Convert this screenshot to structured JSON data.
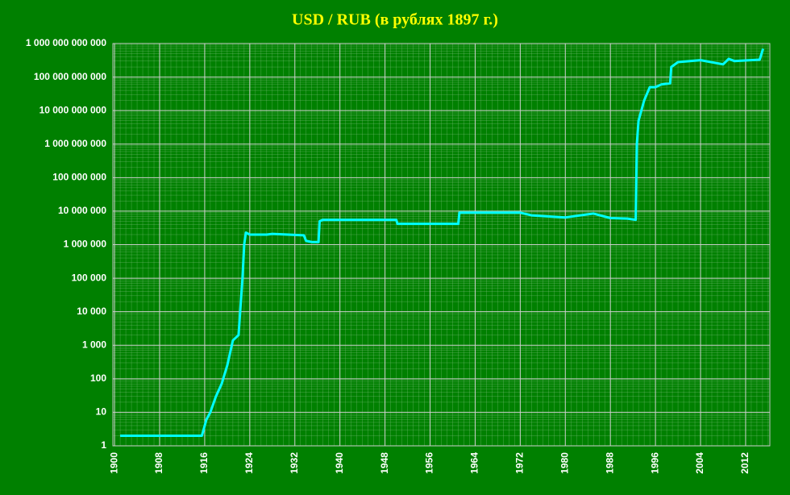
{
  "chart_data": {
    "type": "line",
    "title": "USD / RUB (в рублях 1897 г.)",
    "x": [
      1901,
      1915.5,
      1916.3,
      1917,
      1918,
      1919,
      1920,
      1921,
      1922,
      1922.7,
      1923,
      1923.3,
      1924,
      1927,
      1928,
      1933.6,
      1934,
      1935,
      1936.2,
      1936.4,
      1937,
      1950,
      1950.2,
      1961,
      1961.2,
      1972,
      1974,
      1980,
      1985,
      1988,
      1991,
      1992.5,
      1992.7,
      1993,
      1994,
      1995,
      1996,
      1997,
      1998.6,
      1998.8,
      2000,
      2004,
      2008,
      2009,
      2010,
      2014.5,
      2015.1
    ],
    "values": [
      2,
      2,
      6,
      10,
      30,
      70,
      250,
      1400,
      2000,
      100000,
      1000000,
      2300000,
      2000000,
      2000000,
      2100000,
      1900000,
      1300000,
      1200000,
      1200000,
      5000000,
      5500000,
      5500000,
      4200000,
      4200000,
      9000000,
      9000000,
      7500000,
      6500000,
      8500000,
      6200000,
      6000000,
      5500000,
      1000000000,
      5000000000,
      20000000000,
      50000000000,
      50000000000,
      60000000000,
      65000000000,
      200000000000,
      280000000000,
      320000000000,
      240000000000,
      350000000000,
      300000000000,
      330000000000,
      700000000000
    ],
    "color": "#00ffff",
    "xlim": [
      1899.7,
      2016.3
    ],
    "xticks": [
      1900,
      1908,
      1916,
      1924,
      1932,
      1940,
      1948,
      1956,
      1964,
      1972,
      1980,
      1988,
      1996,
      2004,
      2012
    ],
    "ylim": [
      1,
      1000000000000
    ],
    "yticks": [
      1,
      10,
      100,
      {
        "value": 1000,
        "label": "1 000"
      },
      {
        "value": 10000,
        "label": "10 000"
      },
      {
        "value": 100000,
        "label": "100 000"
      },
      {
        "value": 1000000,
        "label": "1 000 000"
      },
      {
        "value": 10000000,
        "label": "10 000 000"
      },
      {
        "value": 100000000,
        "label": "100 000 000"
      },
      {
        "value": 1000000000,
        "label": "1 000 000 000"
      },
      {
        "value": 10000000000,
        "label": "10 000 000 000"
      },
      {
        "value": 100000000000,
        "label": "100 000 000 000"
      },
      {
        "value": 1000000000000,
        "label": "1 000 000 000 000"
      }
    ],
    "log_y": true,
    "grid": true
  }
}
